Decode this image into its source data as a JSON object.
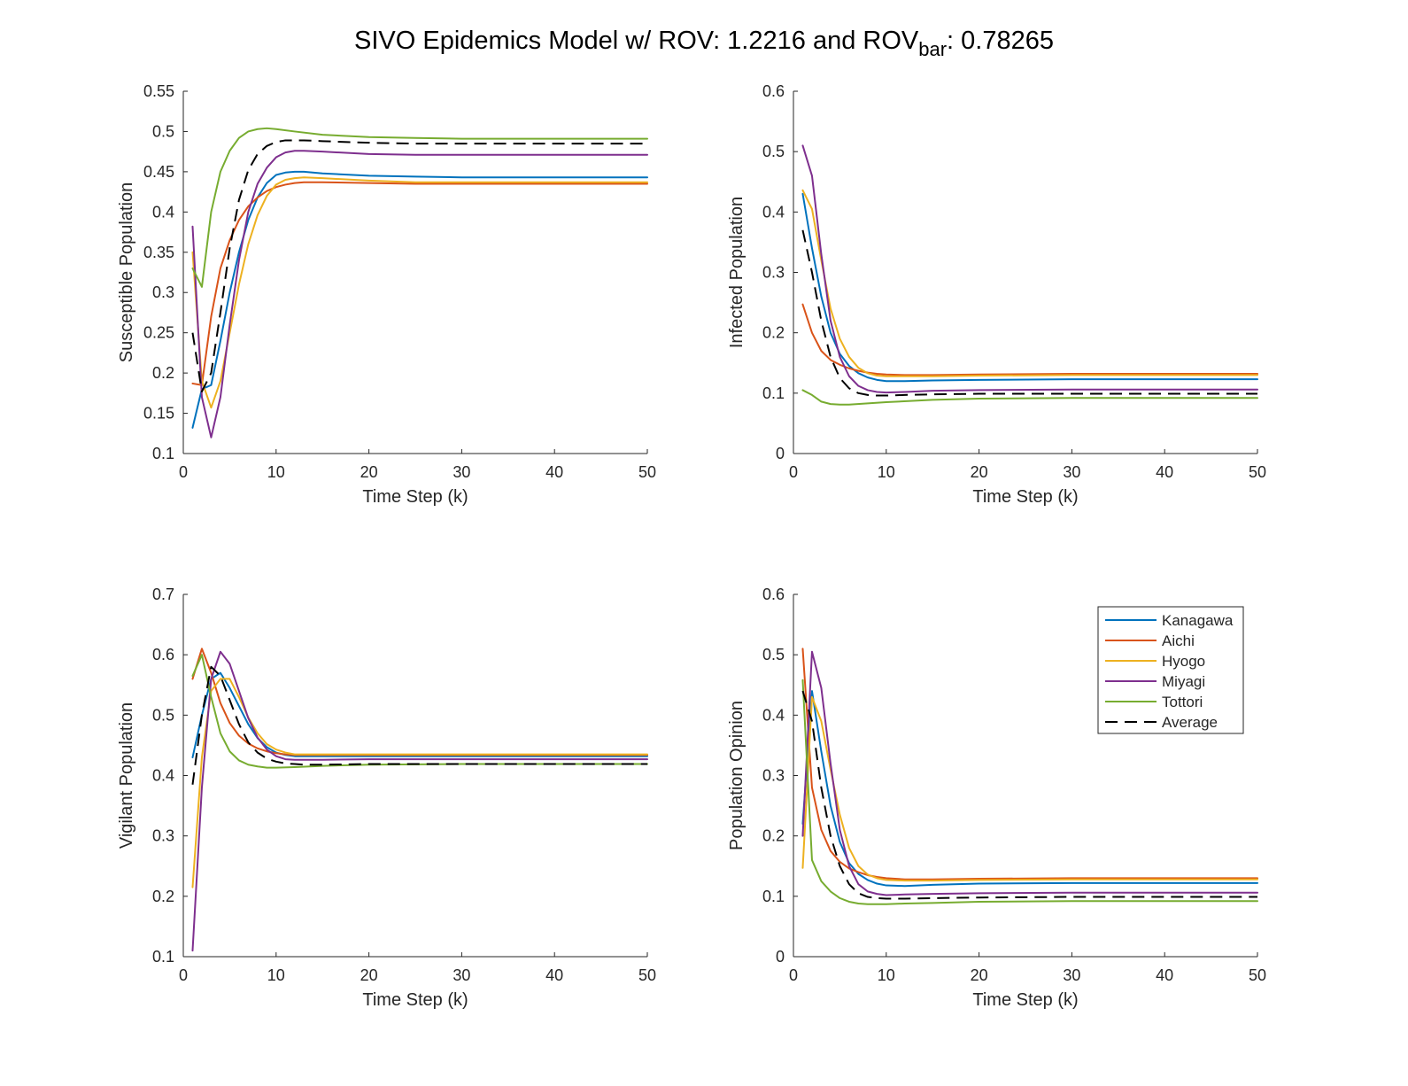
{
  "title": {
    "prefix": "SIVO Epidemics Model w/ ROV: 1.2216 and ROV",
    "sub": "bar",
    "suffix": ": 0.78265"
  },
  "colors": {
    "Kanagawa": "#0072BD",
    "Aichi": "#D95319",
    "Hyogo": "#EDB120",
    "Miyagi": "#7E2F8E",
    "Tottori": "#77AC30",
    "Average": "#000000"
  },
  "legend": {
    "placement": "top-right of Population Opinion panel",
    "entries": [
      "Kanagawa",
      "Aichi",
      "Hyogo",
      "Miyagi",
      "Tottori",
      "Average"
    ]
  },
  "chart_data": [
    {
      "type": "line",
      "panel": "top-left",
      "xlabel": "Time Step (k)",
      "ylabel": "Susceptible Population",
      "xlim": [
        0,
        50
      ],
      "ylim": [
        0.1,
        0.55
      ],
      "xticks": [
        0,
        10,
        20,
        30,
        40,
        50
      ],
      "yticks": [
        0.1,
        0.15,
        0.2,
        0.25,
        0.3,
        0.35,
        0.4,
        0.45,
        0.5,
        0.55
      ],
      "ytick_labels": [
        "0.1",
        "0.15",
        "0.2",
        "0.25",
        "0.3",
        "0.35",
        "0.4",
        "0.45",
        "0.5",
        "0.55"
      ],
      "grid": false,
      "series": [
        {
          "name": "Kanagawa",
          "x": [
            1,
            2,
            3,
            4,
            5,
            6,
            7,
            8,
            9,
            10,
            11,
            12,
            13,
            15,
            20,
            25,
            30,
            40,
            50
          ],
          "values": [
            0.132,
            0.18,
            0.185,
            0.24,
            0.3,
            0.35,
            0.39,
            0.418,
            0.436,
            0.446,
            0.449,
            0.45,
            0.45,
            0.448,
            0.445,
            0.444,
            0.443,
            0.443,
            0.443
          ]
        },
        {
          "name": "Aichi",
          "x": [
            1,
            2,
            3,
            4,
            5,
            6,
            7,
            8,
            9,
            10,
            11,
            12,
            13,
            15,
            20,
            25,
            30,
            40,
            50
          ],
          "values": [
            0.187,
            0.185,
            0.27,
            0.33,
            0.365,
            0.39,
            0.407,
            0.418,
            0.426,
            0.431,
            0.434,
            0.436,
            0.437,
            0.437,
            0.436,
            0.435,
            0.435,
            0.435,
            0.435
          ]
        },
        {
          "name": "Hyogo",
          "x": [
            1,
            2,
            3,
            4,
            5,
            6,
            7,
            8,
            9,
            10,
            11,
            12,
            13,
            15,
            20,
            25,
            30,
            40,
            50
          ],
          "values": [
            0.35,
            0.19,
            0.157,
            0.19,
            0.25,
            0.31,
            0.36,
            0.396,
            0.42,
            0.434,
            0.44,
            0.442,
            0.443,
            0.442,
            0.439,
            0.437,
            0.437,
            0.437,
            0.437
          ]
        },
        {
          "name": "Miyagi",
          "x": [
            1,
            2,
            3,
            4,
            5,
            6,
            7,
            8,
            9,
            10,
            11,
            12,
            13,
            15,
            20,
            25,
            30,
            40,
            50
          ],
          "values": [
            0.382,
            0.17,
            0.12,
            0.17,
            0.26,
            0.34,
            0.4,
            0.435,
            0.455,
            0.468,
            0.474,
            0.476,
            0.476,
            0.475,
            0.472,
            0.471,
            0.471,
            0.471,
            0.471
          ]
        },
        {
          "name": "Tottori",
          "x": [
            1,
            2,
            3,
            4,
            5,
            6,
            7,
            8,
            9,
            10,
            12,
            15,
            20,
            25,
            30,
            40,
            50
          ],
          "values": [
            0.33,
            0.307,
            0.4,
            0.45,
            0.476,
            0.492,
            0.5,
            0.503,
            0.504,
            0.503,
            0.5,
            0.496,
            0.493,
            0.492,
            0.491,
            0.491,
            0.491
          ]
        },
        {
          "name": "Average",
          "dashed": true,
          "x": [
            1,
            2,
            3,
            4,
            5,
            6,
            7,
            8,
            9,
            10,
            11,
            12,
            13,
            15,
            20,
            25,
            30,
            40,
            50
          ],
          "values": [
            0.25,
            0.177,
            0.2,
            0.275,
            0.355,
            0.415,
            0.452,
            0.472,
            0.482,
            0.487,
            0.489,
            0.489,
            0.489,
            0.488,
            0.486,
            0.485,
            0.485,
            0.485,
            0.485
          ]
        }
      ]
    },
    {
      "type": "line",
      "panel": "top-right",
      "xlabel": "Time Step (k)",
      "ylabel": "Infected Population",
      "xlim": [
        0,
        50
      ],
      "ylim": [
        0,
        0.6
      ],
      "xticks": [
        0,
        10,
        20,
        30,
        40,
        50
      ],
      "yticks": [
        0,
        0.1,
        0.2,
        0.3,
        0.4,
        0.5,
        0.6
      ],
      "ytick_labels": [
        "0",
        "0.1",
        "0.2",
        "0.3",
        "0.4",
        "0.5",
        "0.6"
      ],
      "grid": false,
      "series": [
        {
          "name": "Kanagawa",
          "x": [
            1,
            2,
            3,
            4,
            5,
            6,
            7,
            8,
            9,
            10,
            12,
            15,
            20,
            30,
            40,
            50
          ],
          "values": [
            0.43,
            0.34,
            0.26,
            0.2,
            0.165,
            0.145,
            0.133,
            0.126,
            0.122,
            0.12,
            0.12,
            0.121,
            0.122,
            0.123,
            0.123,
            0.123
          ]
        },
        {
          "name": "Aichi",
          "x": [
            1,
            2,
            3,
            4,
            5,
            6,
            7,
            8,
            9,
            10,
            12,
            15,
            20,
            30,
            40,
            50
          ],
          "values": [
            0.247,
            0.2,
            0.17,
            0.155,
            0.147,
            0.141,
            0.137,
            0.134,
            0.132,
            0.131,
            0.13,
            0.13,
            0.131,
            0.132,
            0.132,
            0.132
          ]
        },
        {
          "name": "Hyogo",
          "x": [
            1,
            2,
            3,
            4,
            5,
            6,
            7,
            8,
            9,
            10,
            12,
            15,
            20,
            30,
            40,
            50
          ],
          "values": [
            0.436,
            0.405,
            0.32,
            0.24,
            0.19,
            0.16,
            0.142,
            0.133,
            0.129,
            0.128,
            0.128,
            0.128,
            0.129,
            0.13,
            0.13,
            0.13
          ]
        },
        {
          "name": "Miyagi",
          "x": [
            1,
            2,
            3,
            4,
            5,
            6,
            7,
            8,
            9,
            10,
            12,
            15,
            20,
            30,
            40,
            50
          ],
          "values": [
            0.51,
            0.46,
            0.33,
            0.22,
            0.16,
            0.128,
            0.112,
            0.105,
            0.102,
            0.101,
            0.102,
            0.104,
            0.105,
            0.106,
            0.106,
            0.106
          ]
        },
        {
          "name": "Tottori",
          "x": [
            1,
            2,
            3,
            4,
            5,
            6,
            8,
            10,
            15,
            20,
            30,
            40,
            50
          ],
          "values": [
            0.105,
            0.097,
            0.086,
            0.082,
            0.081,
            0.081,
            0.083,
            0.085,
            0.089,
            0.091,
            0.092,
            0.092,
            0.092
          ]
        },
        {
          "name": "Average",
          "dashed": true,
          "x": [
            1,
            2,
            3,
            4,
            5,
            6,
            7,
            8,
            9,
            10,
            12,
            15,
            20,
            30,
            40,
            50
          ],
          "values": [
            0.37,
            0.3,
            0.22,
            0.16,
            0.125,
            0.108,
            0.1,
            0.097,
            0.096,
            0.096,
            0.097,
            0.098,
            0.099,
            0.099,
            0.099,
            0.099
          ]
        }
      ]
    },
    {
      "type": "line",
      "panel": "bottom-left",
      "xlabel": "Time Step (k)",
      "ylabel": "Vigilant Population",
      "xlim": [
        0,
        50
      ],
      "ylim": [
        0.1,
        0.7
      ],
      "xticks": [
        0,
        10,
        20,
        30,
        40,
        50
      ],
      "yticks": [
        0.1,
        0.2,
        0.3,
        0.4,
        0.5,
        0.6,
        0.7
      ],
      "ytick_labels": [
        "0.1",
        "0.2",
        "0.3",
        "0.4",
        "0.5",
        "0.6",
        "0.7"
      ],
      "grid": false,
      "series": [
        {
          "name": "Kanagawa",
          "x": [
            1,
            2,
            3,
            4,
            5,
            6,
            7,
            8,
            9,
            10,
            11,
            12,
            13,
            15,
            20,
            30,
            40,
            50
          ],
          "values": [
            0.43,
            0.5,
            0.56,
            0.57,
            0.545,
            0.515,
            0.485,
            0.462,
            0.447,
            0.438,
            0.434,
            0.432,
            0.432,
            0.432,
            0.432,
            0.432,
            0.432,
            0.432
          ]
        },
        {
          "name": "Aichi",
          "x": [
            1,
            2,
            3,
            4,
            5,
            6,
            7,
            8,
            9,
            10,
            11,
            12,
            13,
            15,
            20,
            30,
            40,
            50
          ],
          "values": [
            0.56,
            0.61,
            0.57,
            0.52,
            0.487,
            0.466,
            0.453,
            0.445,
            0.44,
            0.437,
            0.435,
            0.434,
            0.434,
            0.434,
            0.434,
            0.434,
            0.434,
            0.434
          ]
        },
        {
          "name": "Hyogo",
          "x": [
            1,
            2,
            3,
            4,
            5,
            6,
            7,
            8,
            9,
            10,
            11,
            12,
            13,
            15,
            20,
            30,
            40,
            50
          ],
          "values": [
            0.215,
            0.43,
            0.54,
            0.56,
            0.56,
            0.53,
            0.496,
            0.47,
            0.452,
            0.443,
            0.438,
            0.435,
            0.435,
            0.435,
            0.435,
            0.435,
            0.435,
            0.435
          ]
        },
        {
          "name": "Miyagi",
          "x": [
            1,
            2,
            3,
            4,
            5,
            6,
            7,
            8,
            9,
            10,
            11,
            12,
            13,
            15,
            20,
            30,
            40,
            50
          ],
          "values": [
            0.11,
            0.38,
            0.56,
            0.605,
            0.585,
            0.54,
            0.495,
            0.463,
            0.443,
            0.432,
            0.427,
            0.426,
            0.426,
            0.426,
            0.427,
            0.427,
            0.427,
            0.427
          ]
        },
        {
          "name": "Tottori",
          "x": [
            1,
            2,
            3,
            4,
            5,
            6,
            7,
            8,
            9,
            10,
            12,
            15,
            20,
            30,
            40,
            50
          ],
          "values": [
            0.565,
            0.6,
            0.53,
            0.47,
            0.44,
            0.425,
            0.418,
            0.415,
            0.413,
            0.413,
            0.414,
            0.416,
            0.418,
            0.419,
            0.419,
            0.419
          ]
        },
        {
          "name": "Average",
          "dashed": true,
          "x": [
            1,
            2,
            3,
            4,
            5,
            6,
            7,
            8,
            9,
            10,
            11,
            12,
            13,
            15,
            20,
            30,
            40,
            50
          ],
          "values": [
            0.385,
            0.5,
            0.58,
            0.565,
            0.525,
            0.485,
            0.455,
            0.438,
            0.428,
            0.423,
            0.42,
            0.419,
            0.418,
            0.418,
            0.419,
            0.419,
            0.419,
            0.419
          ]
        }
      ]
    },
    {
      "type": "line",
      "panel": "bottom-right",
      "xlabel": "Time Step (k)",
      "ylabel": "Population Opinion",
      "xlim": [
        0,
        50
      ],
      "ylim": [
        0,
        0.6
      ],
      "xticks": [
        0,
        10,
        20,
        30,
        40,
        50
      ],
      "yticks": [
        0,
        0.1,
        0.2,
        0.3,
        0.4,
        0.5,
        0.6
      ],
      "ytick_labels": [
        "0",
        "0.1",
        "0.2",
        "0.3",
        "0.4",
        "0.5",
        "0.6"
      ],
      "grid": false,
      "series": [
        {
          "name": "Kanagawa",
          "x": [
            1,
            2,
            3,
            4,
            5,
            6,
            7,
            8,
            9,
            10,
            12,
            15,
            20,
            30,
            40,
            50
          ],
          "values": [
            0.22,
            0.44,
            0.34,
            0.25,
            0.19,
            0.155,
            0.137,
            0.127,
            0.121,
            0.118,
            0.117,
            0.119,
            0.121,
            0.122,
            0.122,
            0.122
          ]
        },
        {
          "name": "Aichi",
          "x": [
            1,
            2,
            3,
            4,
            5,
            6,
            7,
            8,
            9,
            10,
            12,
            15,
            20,
            30,
            40,
            50
          ],
          "values": [
            0.51,
            0.28,
            0.21,
            0.175,
            0.157,
            0.146,
            0.14,
            0.135,
            0.132,
            0.13,
            0.128,
            0.128,
            0.129,
            0.13,
            0.13,
            0.13
          ]
        },
        {
          "name": "Hyogo",
          "x": [
            1,
            2,
            3,
            4,
            5,
            6,
            7,
            8,
            9,
            10,
            12,
            15,
            20,
            30,
            40,
            50
          ],
          "values": [
            0.147,
            0.43,
            0.39,
            0.31,
            0.235,
            0.18,
            0.15,
            0.136,
            0.13,
            0.127,
            0.126,
            0.126,
            0.127,
            0.128,
            0.128,
            0.128
          ]
        },
        {
          "name": "Miyagi",
          "x": [
            1,
            2,
            3,
            4,
            5,
            6,
            7,
            8,
            9,
            10,
            12,
            15,
            20,
            30,
            40,
            50
          ],
          "values": [
            0.2,
            0.505,
            0.445,
            0.32,
            0.21,
            0.15,
            0.12,
            0.108,
            0.104,
            0.102,
            0.103,
            0.104,
            0.105,
            0.106,
            0.106,
            0.106
          ]
        },
        {
          "name": "Tottori",
          "x": [
            1,
            2,
            3,
            4,
            5,
            6,
            7,
            8,
            9,
            10,
            12,
            15,
            20,
            30,
            40,
            50
          ],
          "values": [
            0.458,
            0.16,
            0.125,
            0.108,
            0.097,
            0.091,
            0.088,
            0.087,
            0.087,
            0.087,
            0.088,
            0.089,
            0.091,
            0.092,
            0.092,
            0.092
          ]
        },
        {
          "name": "Average",
          "dashed": true,
          "x": [
            1,
            2,
            3,
            4,
            5,
            6,
            7,
            8,
            9,
            10,
            12,
            15,
            20,
            30,
            40,
            50
          ],
          "values": [
            0.44,
            0.39,
            0.28,
            0.2,
            0.15,
            0.12,
            0.105,
            0.099,
            0.097,
            0.096,
            0.096,
            0.097,
            0.098,
            0.099,
            0.099,
            0.099
          ]
        }
      ]
    }
  ]
}
